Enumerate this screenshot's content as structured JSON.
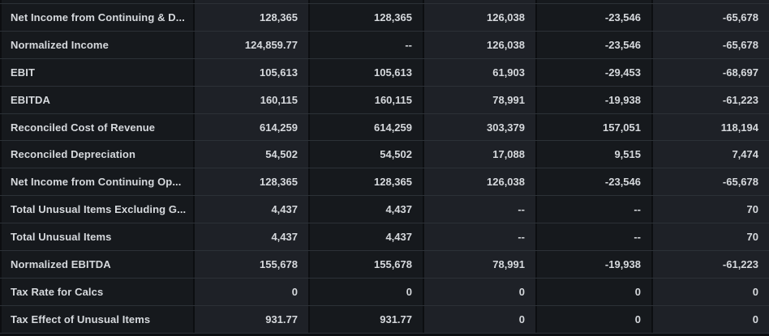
{
  "colors": {
    "bg": "#0c0e11",
    "grid": "#0c0e11",
    "rowline": "#2c3137",
    "cellDark": "#16191d",
    "cellLight": "#1e2127",
    "text": "#d6d9dd"
  },
  "table": {
    "row_count": 12,
    "value_column_count": 5,
    "empty_value_placeholder": "--",
    "rows": [
      {
        "label": "Net Income from Continuing & D...",
        "values": [
          "128,365",
          "128,365",
          "126,038",
          "-23,546",
          "-65,678"
        ]
      },
      {
        "label": "Normalized Income",
        "values": [
          "124,859.77",
          "--",
          "126,038",
          "-23,546",
          "-65,678"
        ]
      },
      {
        "label": "EBIT",
        "values": [
          "105,613",
          "105,613",
          "61,903",
          "-29,453",
          "-68,697"
        ]
      },
      {
        "label": "EBITDA",
        "values": [
          "160,115",
          "160,115",
          "78,991",
          "-19,938",
          "-61,223"
        ]
      },
      {
        "label": "Reconciled Cost of Revenue",
        "values": [
          "614,259",
          "614,259",
          "303,379",
          "157,051",
          "118,194"
        ]
      },
      {
        "label": "Reconciled Depreciation",
        "values": [
          "54,502",
          "54,502",
          "17,088",
          "9,515",
          "7,474"
        ]
      },
      {
        "label": "Net Income from Continuing Op...",
        "values": [
          "128,365",
          "128,365",
          "126,038",
          "-23,546",
          "-65,678"
        ]
      },
      {
        "label": "Total Unusual Items Excluding G...",
        "values": [
          "4,437",
          "4,437",
          "--",
          "--",
          "70"
        ]
      },
      {
        "label": "Total Unusual Items",
        "values": [
          "4,437",
          "4,437",
          "--",
          "--",
          "70"
        ]
      },
      {
        "label": "Normalized EBITDA",
        "values": [
          "155,678",
          "155,678",
          "78,991",
          "-19,938",
          "-61,223"
        ]
      },
      {
        "label": "Tax Rate for Calcs",
        "values": [
          "0",
          "0",
          "0",
          "0",
          "0"
        ]
      },
      {
        "label": "Tax Effect of Unusual Items",
        "values": [
          "931.77",
          "931.77",
          "0",
          "0",
          "0"
        ]
      }
    ]
  }
}
